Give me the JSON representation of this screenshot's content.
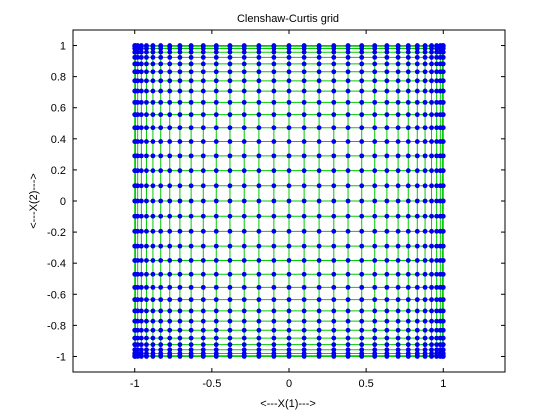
{
  "chart_data": {
    "type": "scatter",
    "title": "Clenshaw-Curtis grid",
    "xlabel": "<---X(1)--->",
    "ylabel": "<---X(2)--->",
    "xlim": [
      -1.4,
      1.4
    ],
    "ylim": [
      -1.1,
      1.1
    ],
    "x_ticks": [
      -1,
      -0.5,
      0,
      0.5,
      1
    ],
    "x_tick_labels": [
      "-1",
      "-0.5",
      "0",
      "0.5",
      "1"
    ],
    "y_ticks": [
      -1,
      -0.8,
      -0.6,
      -0.4,
      -0.2,
      0,
      0.2,
      0.4,
      0.6,
      0.8,
      1
    ],
    "y_tick_labels": [
      "-1",
      "-0.8",
      "-0.6",
      "-0.4",
      "-0.2",
      "0",
      "0.2",
      "0.4",
      "0.6",
      "0.8",
      "1"
    ],
    "grid": false,
    "grid_points_per_axis": 33,
    "grid_line_color": "#00cc00",
    "marker_color": "#0000ee",
    "axes_color": "#000000"
  }
}
